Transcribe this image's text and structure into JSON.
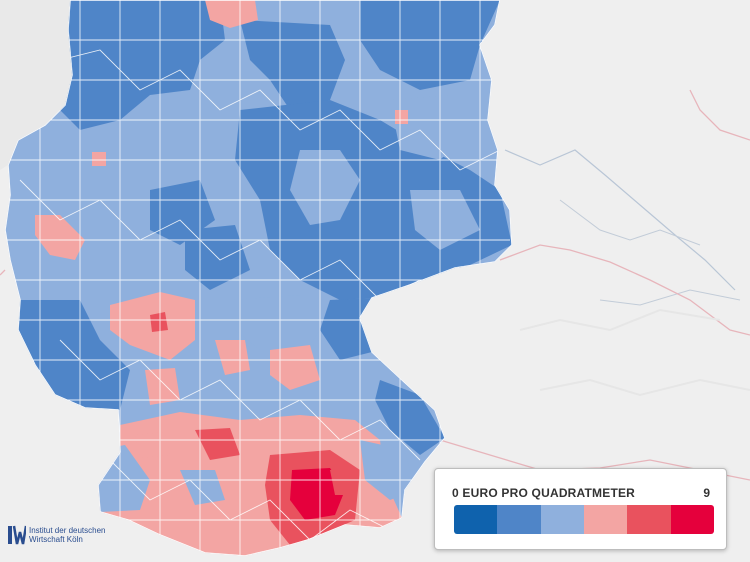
{
  "legend": {
    "title": "0 EURO PRO QUADRATMETER",
    "max_label": "9",
    "colors": [
      "#0f62ad",
      "#4f85c8",
      "#8fb0dd",
      "#f3a5a3",
      "#e9525e",
      "#e5003c"
    ]
  },
  "logo": {
    "line1": "Institut der deutschen",
    "line2": "Wirtschaft Köln"
  },
  "map": {
    "background": "#eeeeee",
    "land_color": "#f2f2f2",
    "border_color": "#ffffff"
  }
}
